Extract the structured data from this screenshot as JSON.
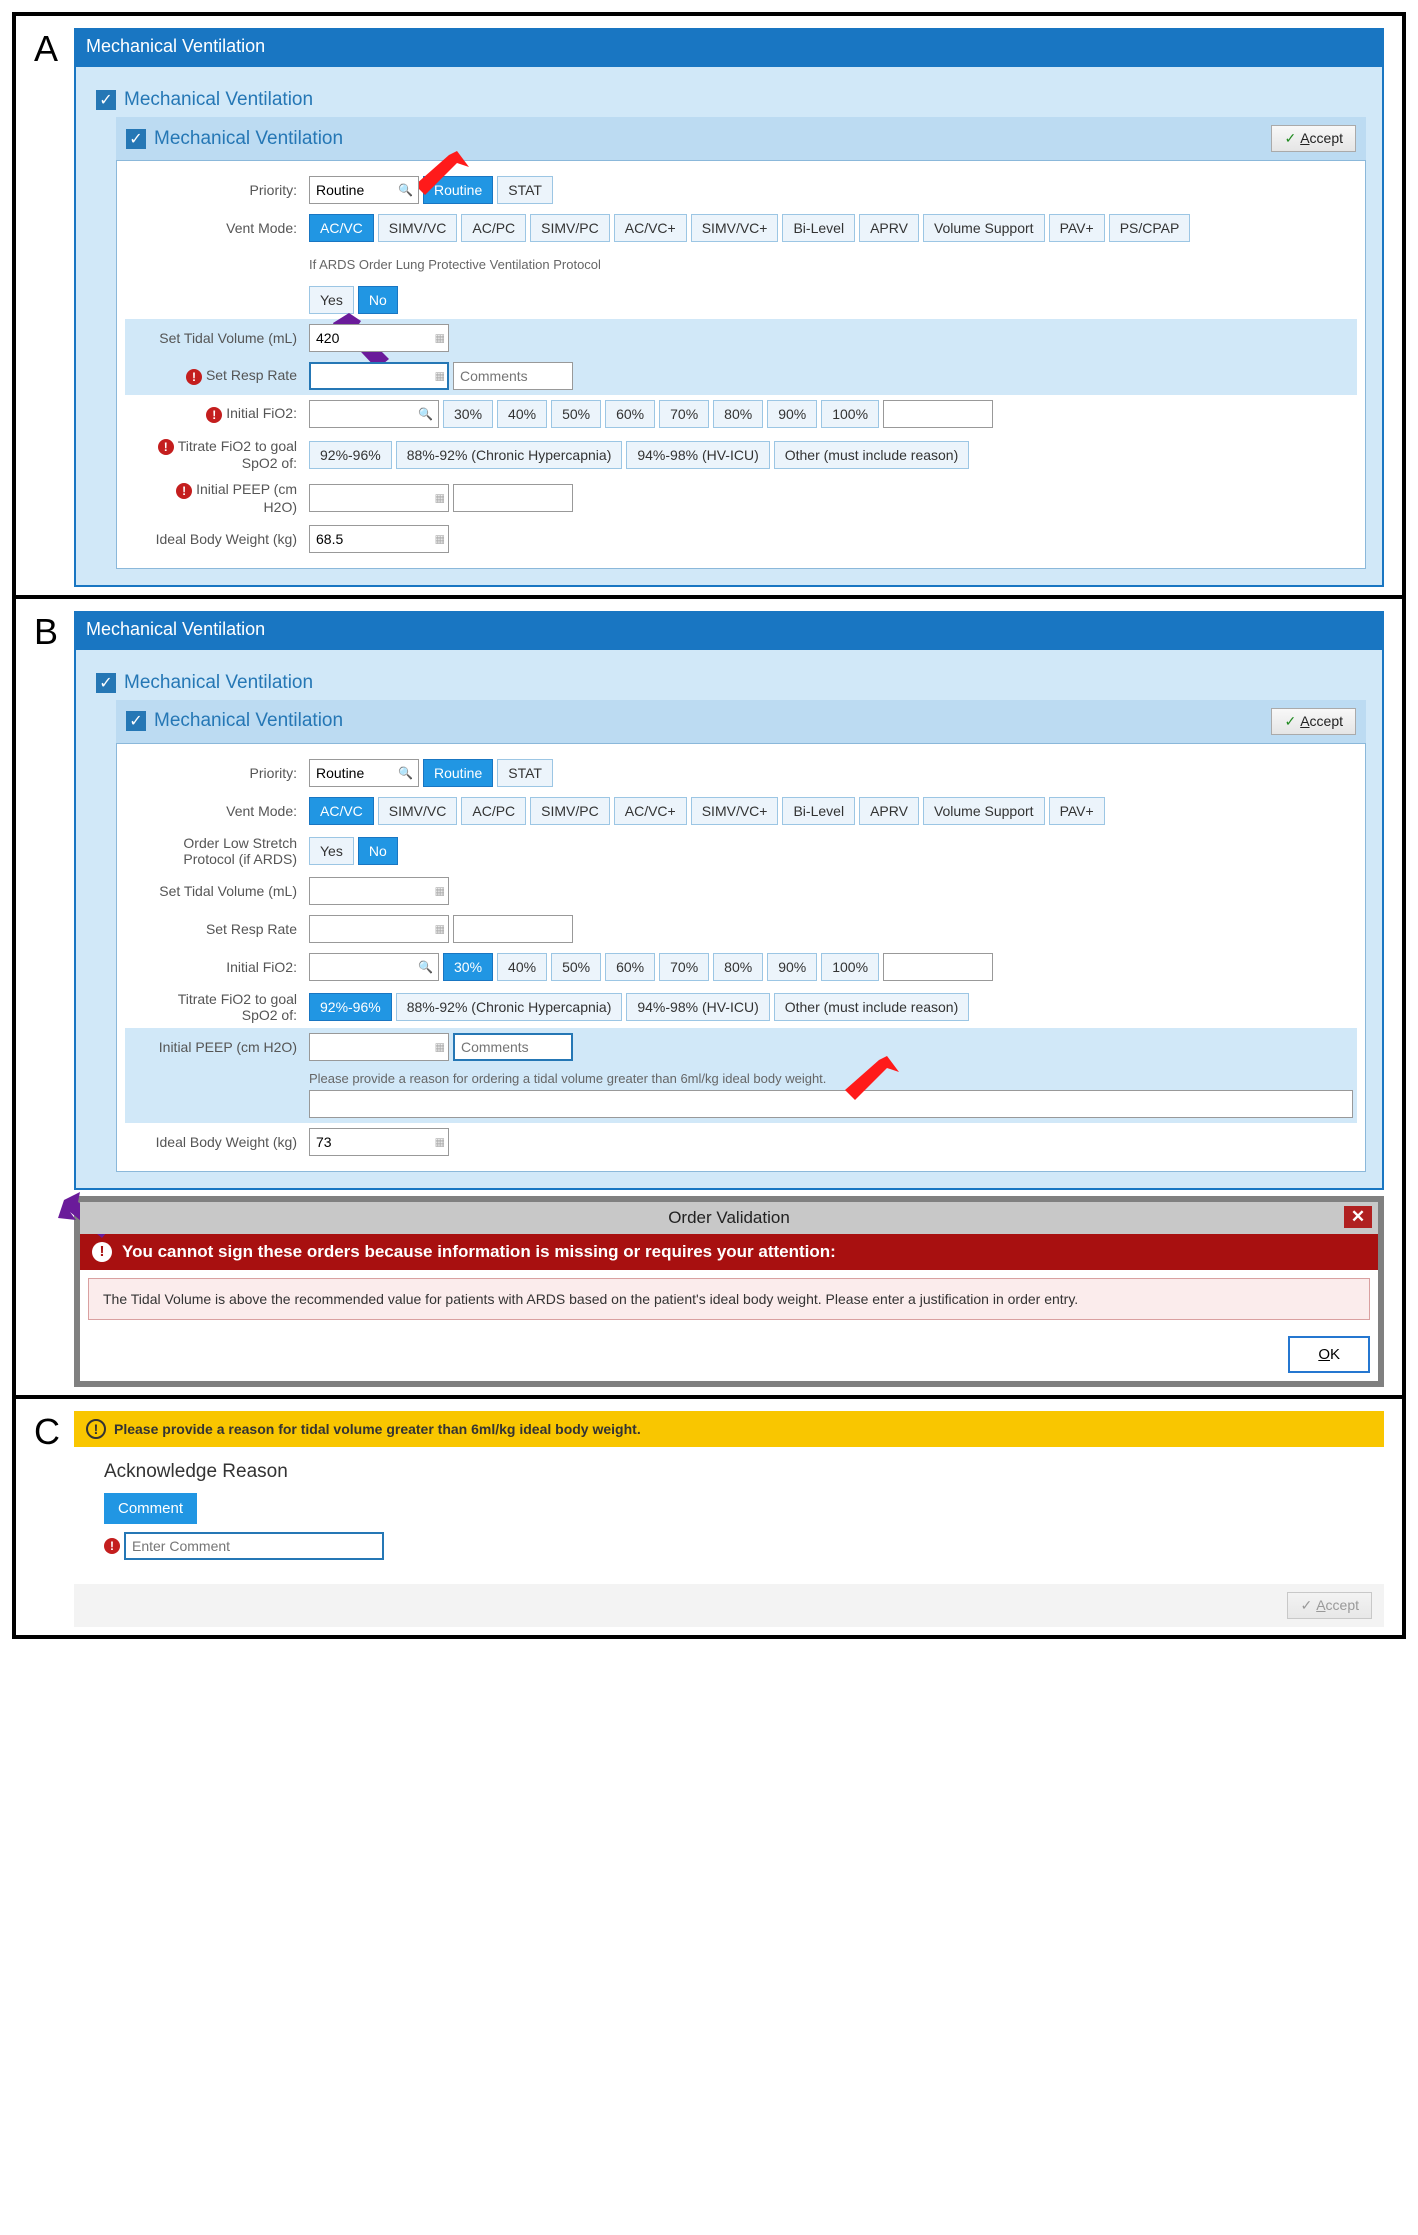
{
  "colors": {
    "titlebar_bg": "#1976c2",
    "section_blue": "#d1e8f8",
    "header_blue": "#bcdbf2",
    "text_blue": "#2577b5",
    "btn_selected": "#2196e3",
    "req_red": "#c41e1e",
    "warn_yellow": "#f9c600",
    "arrow_red": "#ff1a1a",
    "arrow_purple": "#6a1b9a",
    "error_red": "#a81010"
  },
  "panelA": {
    "label": "A",
    "title": "Mechanical Ventilation",
    "section1": "Mechanical Ventilation",
    "section2": "Mechanical Ventilation",
    "accept": "Accept",
    "priority": {
      "label": "Priority:",
      "value": "Routine",
      "options": [
        "Routine",
        "STAT"
      ],
      "selected": "Routine"
    },
    "ventMode": {
      "label": "Vent Mode:",
      "options": [
        "AC/VC",
        "SIMV/VC",
        "AC/PC",
        "SIMV/PC",
        "AC/VC+",
        "SIMV/VC+",
        "Bi-Level",
        "APRV",
        "Volume Support",
        "PAV+",
        "PS/CPAP"
      ],
      "selected": "AC/VC"
    },
    "ardsNote": "If ARDS Order Lung Protective Ventilation Protocol",
    "ards": {
      "options": [
        "Yes",
        "No"
      ],
      "selected": "No"
    },
    "tidal": {
      "label": "Set Tidal Volume (mL)",
      "value": "420"
    },
    "respRate": {
      "label": "Set Resp Rate",
      "value": "",
      "comments_ph": "Comments"
    },
    "fio2": {
      "label": "Initial FiO2:",
      "options": [
        "30%",
        "40%",
        "50%",
        "60%",
        "70%",
        "80%",
        "90%",
        "100%"
      ],
      "selected": null
    },
    "titrate": {
      "label": "Titrate FiO2 to goal SpO2 of:",
      "options": [
        "92%-96%",
        "88%-92% (Chronic Hypercapnia)",
        "94%-98% (HV-ICU)",
        "Other (must include reason)"
      ],
      "selected": null
    },
    "peep": {
      "label": "Initial PEEP (cm H2O)"
    },
    "ibw": {
      "label": "Ideal Body Weight (kg)",
      "value": "68.5"
    }
  },
  "panelB": {
    "label": "B",
    "title": "Mechanical Ventilation",
    "section1": "Mechanical Ventilation",
    "section2": "Mechanical Ventilation",
    "accept": "Accept",
    "priority": {
      "label": "Priority:",
      "value": "Routine",
      "options": [
        "Routine",
        "STAT"
      ],
      "selected": "Routine"
    },
    "ventMode": {
      "label": "Vent Mode:",
      "options": [
        "AC/VC",
        "SIMV/VC",
        "AC/PC",
        "SIMV/PC",
        "AC/VC+",
        "SIMV/VC+",
        "Bi-Level",
        "APRV",
        "Volume Support",
        "PAV+"
      ],
      "selected": "AC/VC"
    },
    "lowStretch": {
      "label": "Order Low Stretch Protocol (if ARDS)",
      "options": [
        "Yes",
        "No"
      ],
      "selected": "No"
    },
    "tidal": {
      "label": "Set Tidal Volume (mL)",
      "value": ""
    },
    "respRate": {
      "label": "Set Resp Rate",
      "value": ""
    },
    "fio2": {
      "label": "Initial FiO2:",
      "options": [
        "30%",
        "40%",
        "50%",
        "60%",
        "70%",
        "80%",
        "90%",
        "100%"
      ],
      "selected": "30%"
    },
    "titrate": {
      "label": "Titrate FiO2 to goal SpO2 of:",
      "options": [
        "92%-96%",
        "88%-92% (Chronic Hypercapnia)",
        "94%-98% (HV-ICU)",
        "Other (must include reason)"
      ],
      "selected": "92%-96%"
    },
    "peep": {
      "label": "Initial PEEP (cm H2O)",
      "comments_ph": "Comments"
    },
    "reasonNote": "Please provide a reason for ordering a tidal volume greater than 6ml/kg ideal body weight.",
    "ibw": {
      "label": "Ideal Body Weight (kg)",
      "value": "73"
    },
    "validation": {
      "title": "Order Validation",
      "banner": "You cannot sign these orders because information is missing or requires your attention:",
      "message": "The Tidal Volume is above the recommended value for patients with ARDS based on the patient's ideal body weight. Please enter a justification in order entry.",
      "ok": "OK"
    }
  },
  "panelC": {
    "label": "C",
    "warn": "Please provide a reason for tidal volume greater than 6ml/kg ideal body weight.",
    "ack_title": "Acknowledge Reason",
    "comment_btn": "Comment",
    "comment_ph": "Enter Comment",
    "accept": "Accept"
  }
}
